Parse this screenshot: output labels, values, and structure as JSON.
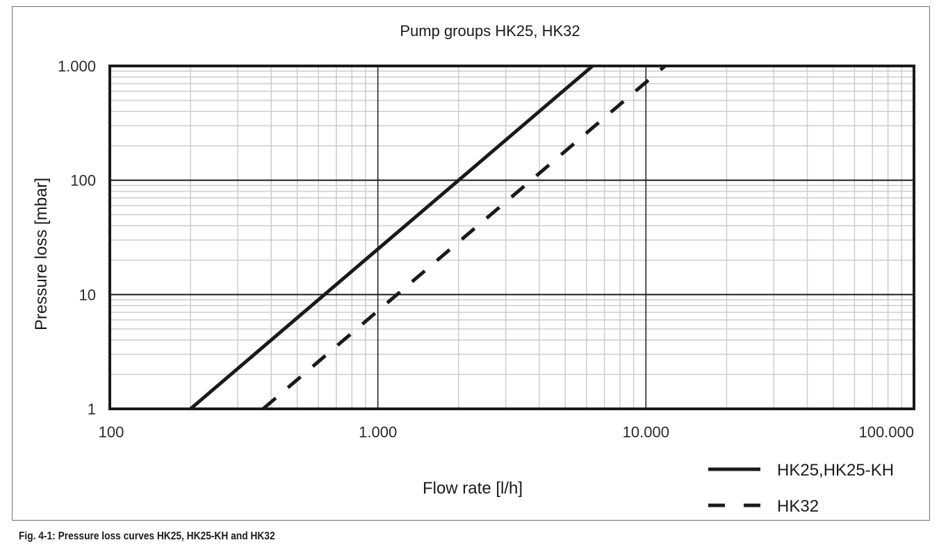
{
  "figure": {
    "caption": "Fig. 4-1: Pressure loss curves HK25, HK25-KH and HK32"
  },
  "chart_data": {
    "type": "line",
    "title": "Pump groups HK25, HK32",
    "xlabel": "Flow rate [l/h]",
    "ylabel": "Pressure loss [mbar]",
    "xscale": "log",
    "yscale": "log",
    "xlim": [
      100,
      100000
    ],
    "ylim": [
      1,
      1000
    ],
    "x_ticks": [
      100,
      1000,
      10000,
      100000
    ],
    "x_tick_labels": [
      "100",
      "1.000",
      "10.000",
      "100.000"
    ],
    "y_ticks": [
      1,
      10,
      100,
      1000
    ],
    "y_tick_labels": [
      "1",
      "10",
      "100",
      "1.000"
    ],
    "grid": true,
    "legend_position": "bottom-right, outside plot",
    "series": [
      {
        "name": "HK25,HK25-KH",
        "style": "solid",
        "x": [
          200,
          500,
          1000,
          2000,
          5000,
          6325
        ],
        "y": [
          1,
          6.25,
          25,
          100,
          625,
          1000
        ]
      },
      {
        "name": "HK32",
        "style": "dashed",
        "x": [
          373,
          1000,
          2000,
          3730,
          10000,
          11785
        ],
        "y": [
          1,
          7.2,
          28.8,
          100,
          720,
          1000
        ]
      }
    ],
    "colors": {
      "line": "#1a1a1a",
      "major_grid": "#1a1a1a",
      "minor_grid": "#cccccc"
    }
  }
}
